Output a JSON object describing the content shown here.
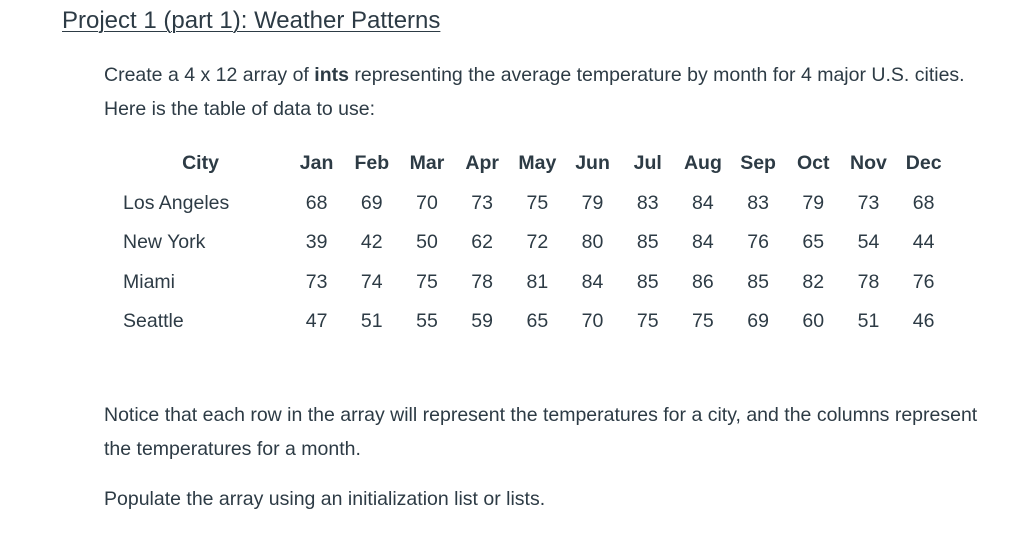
{
  "title": "Project 1 (part 1):  Weather Patterns",
  "intro": {
    "before": "Create a 4 x 12 array of ",
    "bold": "ints",
    "after": " representing the average temperature by month for 4 major U.S. cities.  Here is the table of data to use:"
  },
  "table": {
    "city_header": "City",
    "months": [
      "Jan",
      "Feb",
      "Mar",
      "Apr",
      "May",
      "Jun",
      "Jul",
      "Aug",
      "Sep",
      "Oct",
      "Nov",
      "Dec"
    ],
    "rows": [
      {
        "city": "Los Angeles",
        "temps": [
          "68",
          "69",
          "70",
          "73",
          "75",
          "79",
          "83",
          "84",
          "83",
          "79",
          "73",
          "68"
        ]
      },
      {
        "city": "New York",
        "temps": [
          "39",
          "42",
          "50",
          "62",
          "72",
          "80",
          "85",
          "84",
          "76",
          "65",
          "54",
          "44"
        ]
      },
      {
        "city": "Miami",
        "temps": [
          "73",
          "74",
          "75",
          "78",
          "81",
          "84",
          "85",
          "86",
          "85",
          "82",
          "78",
          "76"
        ]
      },
      {
        "city": "Seattle",
        "temps": [
          "47",
          "51",
          "55",
          "59",
          "65",
          "70",
          "75",
          "75",
          "69",
          "60",
          "51",
          "46"
        ]
      }
    ]
  },
  "notice": "Notice that each row in the array will represent the temperatures for a city, and the columns represent the temperatures for a month.",
  "populate": "Populate the array using an initialization list or lists."
}
